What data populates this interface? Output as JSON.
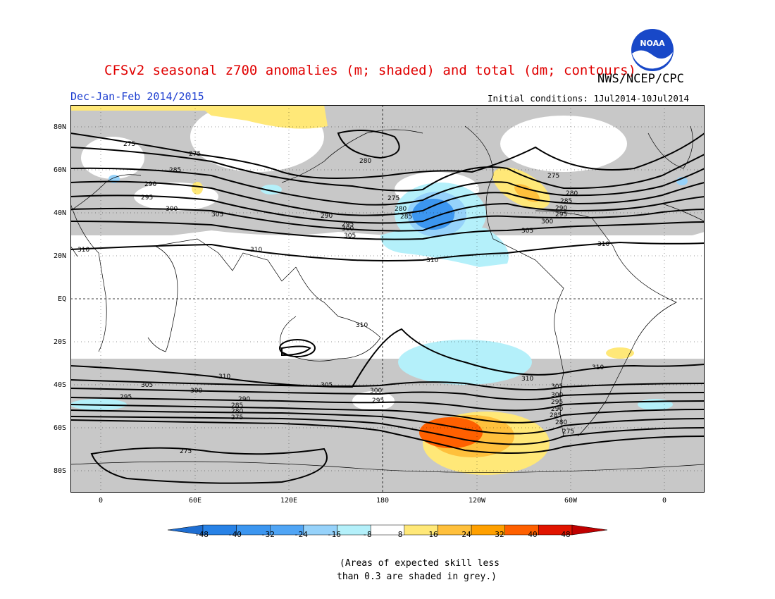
{
  "header": {
    "title": "CFSv2 seasonal z700 anomalies (m; shaded) and total (dm; contours)",
    "season": "Dec-Jan-Feb 2014/2015",
    "organization": "NWS/NCEP/CPC",
    "initial_conditions": "Initial conditions: 1Jul2014-10Jul2014",
    "logo_text": "NOAA"
  },
  "map": {
    "lat_labels": [
      "80N",
      "60N",
      "40N",
      "20N",
      "EQ",
      "20S",
      "40S",
      "60S",
      "80S"
    ],
    "lon_labels": [
      "0",
      "60E",
      "120E",
      "180",
      "120W",
      "60W",
      "0"
    ],
    "contour_labels": [
      "275",
      "280",
      "285",
      "290",
      "295",
      "300",
      "305",
      "310"
    ],
    "colors": {
      "skill_grey": "#c8c8c8",
      "neg_light": "#b4f0fa",
      "neg_mid": "#96d2fa",
      "neg_strong": "#3c96f0",
      "pos_light": "#ffe878",
      "pos_mid": "#ffc03c",
      "pos_strong": "#ff6000"
    }
  },
  "colorbar": {
    "labels": [
      "-48",
      "-40",
      "-32",
      "-24",
      "-16",
      "-8",
      "8",
      "16",
      "24",
      "32",
      "40",
      "48"
    ],
    "colors": [
      "#1e6ed2",
      "#2882e6",
      "#3c96f0",
      "#50a5f5",
      "#96d2fa",
      "#b4f0fa",
      "#ffffff",
      "#ffe878",
      "#ffc03c",
      "#ffa000",
      "#ff6000",
      "#e11400",
      "#c00000"
    ]
  },
  "note": {
    "line1": "(Areas of expected skill less",
    "line2": "than 0.3 are shaded in grey.)"
  }
}
